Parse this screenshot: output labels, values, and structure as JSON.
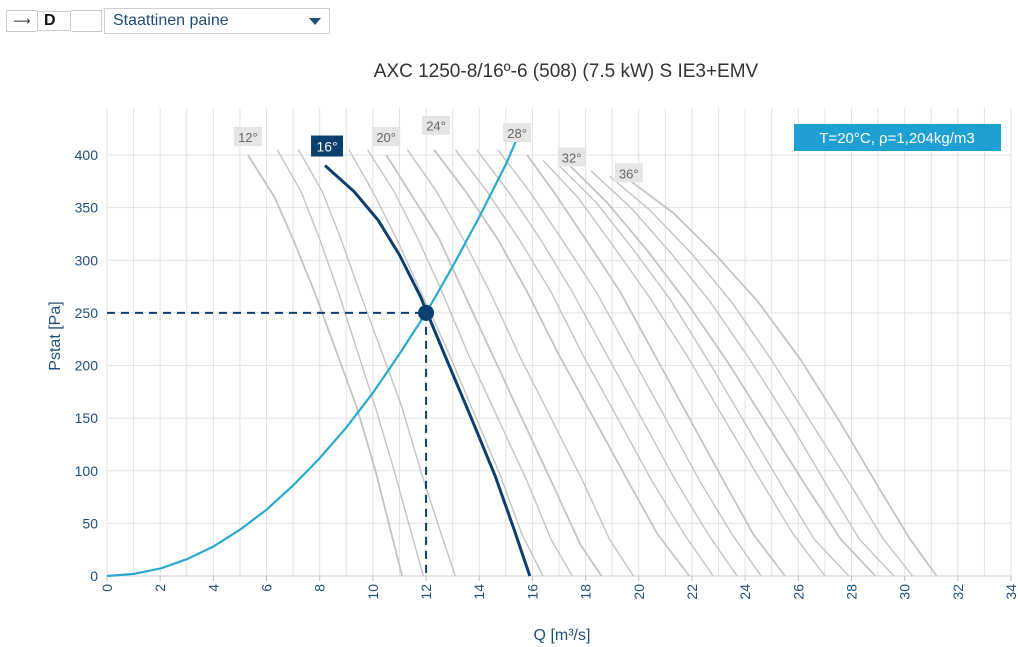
{
  "toolbar": {
    "arrow_glyph": "⟶",
    "mode_letter": "D",
    "dropdown_value": "Staattinen paine"
  },
  "colors": {
    "selected_curve": "#0d3f6e",
    "system_curve": "#2aa9cf",
    "other_curves": "#c4c4c4",
    "grid": "#e3e3e3",
    "axis_text": "#1f4e79",
    "info_box": "#1ea1d2"
  },
  "chart_data": {
    "type": "line",
    "title": "AXC 1250-8/16º-6 (508) (7.5 kW) S IE3+EMV",
    "xlabel": "Q [m³/s]",
    "ylabel": "Pstat [Pa]",
    "xlim": [
      0,
      34
    ],
    "ylim": [
      0,
      400
    ],
    "xticks": [
      0,
      2,
      4,
      6,
      8,
      10,
      12,
      14,
      16,
      18,
      20,
      22,
      24,
      26,
      28,
      30,
      32,
      34
    ],
    "yticks": [
      0,
      50,
      100,
      150,
      200,
      250,
      300,
      350,
      400
    ],
    "grid": true,
    "info_box": "T=20°C, ρ=1,204kg/m3",
    "operating_point": {
      "q": 12.0,
      "p": 250
    },
    "selected_curve_label": "16°",
    "selected_curve": {
      "x": [
        8.2,
        9.3,
        10.2,
        11.0,
        11.8,
        12.7,
        13.7,
        14.6,
        15.3,
        15.9
      ],
      "y": [
        390,
        365,
        338,
        305,
        265,
        210,
        150,
        95,
        45,
        0
      ]
    },
    "system_curve": {
      "x": [
        0,
        1,
        2,
        3,
        4,
        5,
        6,
        7,
        8,
        9,
        10,
        11,
        12,
        13,
        14,
        15,
        15.5
      ],
      "y": [
        0,
        2,
        7,
        16,
        28,
        44,
        63,
        86,
        112,
        141,
        174,
        211,
        250,
        294,
        341,
        391,
        420
      ]
    },
    "angle_labels": [
      "12°",
      "20°",
      "24°",
      "28°",
      "32°",
      "36°"
    ],
    "angle_curves": [
      {
        "x": [
          5.3,
          6.3,
          7.0,
          7.8,
          8.6,
          9.4,
          10.1,
          10.7,
          11.1
        ],
        "y": [
          400,
          360,
          320,
          270,
          215,
          160,
          100,
          40,
          0
        ]
      },
      {
        "x": [
          10.5,
          11.5,
          12.5,
          13.4,
          14.5,
          15.6,
          16.8,
          17.8,
          18.6
        ],
        "y": [
          400,
          360,
          320,
          270,
          210,
          150,
          85,
          30,
          0
        ]
      },
      {
        "x": [
          12.3,
          13.5,
          14.7,
          15.8,
          17.0,
          18.3,
          19.6,
          20.7,
          21.9
        ],
        "y": [
          405,
          365,
          320,
          270,
          210,
          150,
          90,
          40,
          0
        ]
      },
      {
        "x": [
          15.8,
          16.8,
          18.0,
          19.3,
          20.6,
          21.9,
          23.2,
          24.3,
          25.5
        ],
        "y": [
          400,
          365,
          320,
          270,
          210,
          150,
          90,
          40,
          0
        ]
      },
      {
        "x": [
          17.4,
          18.8,
          20.3,
          21.8,
          23.3,
          24.8,
          26.3,
          27.6,
          28.9
        ],
        "y": [
          390,
          355,
          310,
          260,
          205,
          145,
          85,
          35,
          0
        ]
      },
      {
        "x": [
          19.7,
          21.3,
          22.9,
          24.5,
          26.1,
          27.6,
          29.0,
          30.2,
          31.2
        ],
        "y": [
          375,
          345,
          305,
          260,
          205,
          145,
          85,
          35,
          0
        ]
      }
    ],
    "intermediate_curves": [
      {
        "x": [
          6.4,
          7.3,
          8.0,
          8.7,
          9.4,
          10.1,
          10.8,
          11.4,
          11.9
        ],
        "y": [
          405,
          365,
          320,
          270,
          215,
          160,
          100,
          45,
          0
        ]
      },
      {
        "x": [
          7.2,
          8.1,
          8.8,
          9.5,
          10.3,
          11.1,
          11.8,
          12.5,
          13.1
        ],
        "y": [
          405,
          365,
          320,
          270,
          215,
          160,
          100,
          45,
          0
        ]
      },
      {
        "x": [
          9.1,
          10.0,
          10.9,
          11.8,
          12.8,
          13.8,
          14.8,
          15.6,
          16.4
        ],
        "y": [
          405,
          365,
          320,
          270,
          215,
          155,
          95,
          40,
          0
        ]
      },
      {
        "x": [
          9.8,
          10.8,
          11.7,
          12.6,
          13.6,
          14.7,
          15.8,
          16.7,
          17.5
        ],
        "y": [
          405,
          365,
          320,
          270,
          210,
          150,
          90,
          35,
          0
        ]
      },
      {
        "x": [
          11.3,
          12.4,
          13.4,
          14.4,
          15.5,
          16.7,
          17.9,
          18.9,
          19.8
        ],
        "y": [
          405,
          365,
          320,
          270,
          210,
          150,
          90,
          35,
          0
        ]
      },
      {
        "x": [
          13.1,
          14.3,
          15.5,
          16.7,
          17.9,
          19.2,
          20.5,
          21.7,
          22.8
        ],
        "y": [
          405,
          365,
          320,
          270,
          210,
          150,
          90,
          40,
          0
        ]
      },
      {
        "x": [
          13.9,
          15.1,
          16.3,
          17.5,
          18.8,
          20.1,
          21.4,
          22.6,
          23.7
        ],
        "y": [
          405,
          365,
          320,
          270,
          210,
          150,
          90,
          40,
          0
        ]
      },
      {
        "x": [
          14.7,
          15.9,
          17.1,
          18.4,
          19.7,
          21.0,
          22.3,
          23.5,
          24.6
        ],
        "y": [
          405,
          365,
          320,
          270,
          210,
          150,
          90,
          40,
          0
        ]
      },
      {
        "x": [
          16.4,
          17.7,
          19.0,
          20.4,
          21.8,
          23.2,
          24.6,
          25.8,
          27.0
        ],
        "y": [
          395,
          360,
          315,
          265,
          210,
          150,
          90,
          40,
          0
        ]
      },
      {
        "x": [
          17.0,
          18.4,
          19.8,
          21.2,
          22.6,
          24.0,
          25.4,
          26.6,
          27.9
        ],
        "y": [
          390,
          355,
          310,
          262,
          205,
          145,
          85,
          35,
          0
        ]
      },
      {
        "x": [
          18.2,
          19.7,
          21.2,
          22.7,
          24.2,
          25.7,
          27.1,
          28.3,
          29.6
        ],
        "y": [
          385,
          350,
          307,
          260,
          205,
          145,
          85,
          35,
          0
        ]
      },
      {
        "x": [
          18.9,
          20.4,
          22.0,
          23.5,
          25.0,
          26.5,
          28.0,
          29.2,
          30.3
        ],
        "y": [
          380,
          348,
          306,
          260,
          205,
          145,
          85,
          35,
          0
        ]
      }
    ]
  }
}
